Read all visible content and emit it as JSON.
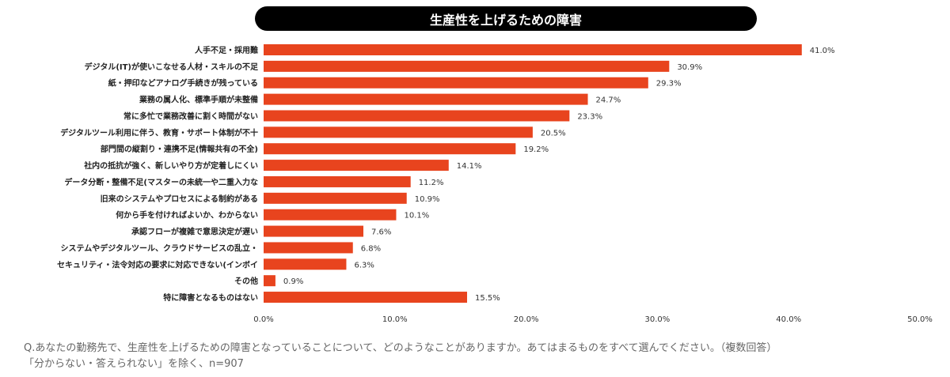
{
  "chart_data": {
    "type": "bar",
    "orientation": "horizontal",
    "title": "生産性を上げるための障害",
    "categories": [
      "人手不足・採用難",
      "デジタル(IT)が使いこなせる人材・スキルの不足",
      "紙・押印などアナログ手続きが残っている",
      "業務の属人化、標準手順が未整備",
      "常に多忙で業務改善に割く時間がない",
      "デジタルツール利用に伴う、教育・サポート体制が不十",
      "部門間の縦割り・連携不足(情報共有の不全)",
      "社内の抵抗が強く、新しいやり方が定着しにくい",
      "データ分断・整備不足(マスターの未統一や二重入力な",
      "旧来のシステムやプロセスによる制約がある",
      "何から手を付ければよいか、わからない",
      "承認フローが複雑で意思決定が遅い",
      "システムやデジタルツール、クラウドサービスの乱立・",
      "セキュリティ・法令対応の要求に対応できない(インボイ",
      "その他",
      "特に障害となるものはない"
    ],
    "values": [
      41.0,
      30.9,
      29.3,
      24.7,
      23.3,
      20.5,
      19.2,
      14.1,
      11.2,
      10.9,
      10.1,
      7.6,
      6.8,
      6.3,
      0.9,
      15.5
    ],
    "data_labels": [
      "41.0%",
      "30.9%",
      "29.3%",
      "24.7%",
      "23.3%",
      "20.5%",
      "19.2%",
      "14.1%",
      "11.2%",
      "10.9%",
      "10.1%",
      "7.6%",
      "6.8%",
      "6.3%",
      "0.9%",
      "15.5%"
    ],
    "xlim": [
      0,
      50
    ],
    "x_ticks": [
      "0.0%",
      "10.0%",
      "20.0%",
      "30.0%",
      "40.0%",
      "50.0%"
    ],
    "grid": false,
    "bar_color": "#E8441E"
  },
  "footnote": {
    "line1": "Q.あなたの勤務先で、生産性を上げるための障害となっていることについて、どのようなことがありますか。あてはまるものをすべて選んでください。（複数回答）",
    "line2": "「分からない・答えられない」を除く、n=907"
  }
}
